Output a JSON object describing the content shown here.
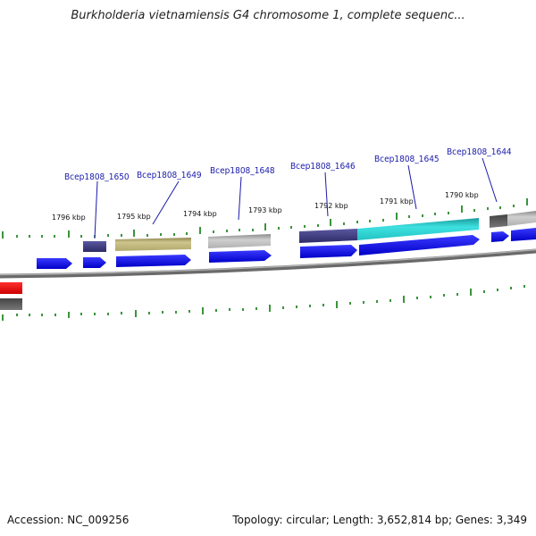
{
  "header": {
    "title": "Burkholderia vietnamiensis G4 chromosome 1, complete sequenc..."
  },
  "footer": {
    "accession": "Accession: NC_009256",
    "summary": "Topology: circular; Length: 3,652,814 bp; Genes: 3,349"
  },
  "kbp_ticks": [
    "1796 kbp",
    "1795 kbp",
    "1794 kbp",
    "1793 kbp",
    "1792 kbp",
    "1791 kbp",
    "1790 kbp"
  ],
  "gene_labels": [
    "Bcep1808_1650",
    "Bcep1808_1649",
    "Bcep1808_1648",
    "Bcep1808_1646",
    "Bcep1808_1645",
    "Bcep1808_1644"
  ],
  "colors": {
    "cds": "#0000ee",
    "cog_purple": "#3d3a7a",
    "cog_olive": "#bdb478",
    "cog_gray": "#b8b8b8",
    "cog_cyan": "#22cccc",
    "cog_dark": "#666666",
    "red": "#ee1111",
    "backbone": "#888888",
    "tick": "#0a7a0a"
  }
}
